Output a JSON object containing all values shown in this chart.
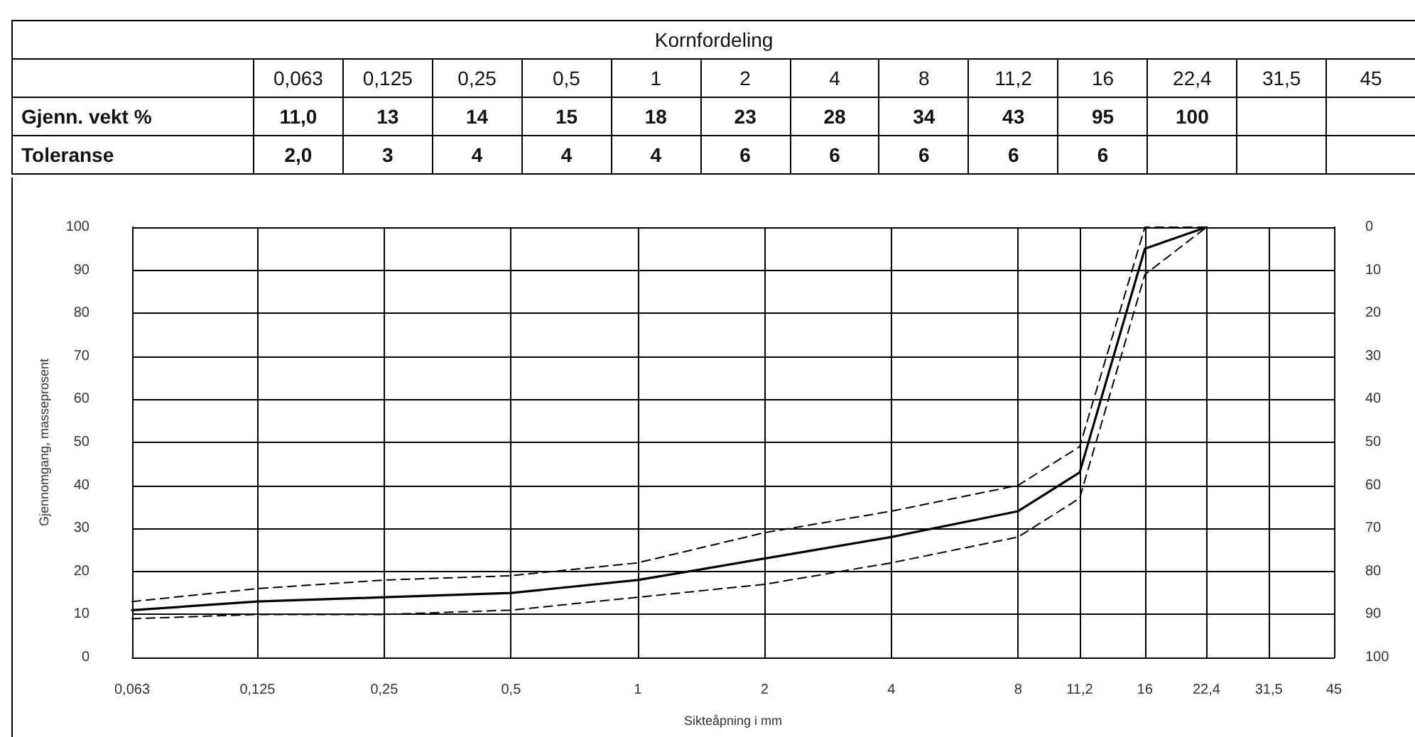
{
  "chart_data": [
    {
      "type": "other",
      "title": "Kornfordeling",
      "categories": [
        "0,063",
        "0,125",
        "0,25",
        "0,5",
        "1",
        "2",
        "4",
        "8",
        "11,2",
        "16",
        "22,4",
        "31,5",
        "45"
      ],
      "y_categories": [
        "Gjenn. vekt %",
        "Toleranse"
      ],
      "cell_labels": [
        [
          "11,0",
          "13",
          "14",
          "15",
          "18",
          "23",
          "28",
          "34",
          "43",
          "95",
          "100",
          null,
          null
        ],
        [
          "2,0",
          "3",
          "4",
          "4",
          "4",
          "6",
          "6",
          "6",
          "6",
          "6",
          null,
          null,
          null
        ]
      ]
    },
    {
      "type": "line",
      "xlabel": "Sikteåpning i mm",
      "ylabel": "Gjennomgang, masseprosent",
      "x": [
        0.063,
        0.125,
        0.25,
        0.5,
        1,
        2,
        4,
        8,
        11.2,
        16,
        22.4
      ],
      "series": [
        {
          "color": "#000000",
          "line_style": "solid",
          "values": [
            11.0,
            13,
            14,
            15,
            18,
            23,
            28,
            34,
            43,
            95,
            100
          ]
        },
        {
          "color": "#000000",
          "line_style": "dashed",
          "values": [
            13,
            16,
            18,
            19,
            22,
            29,
            34,
            40,
            49,
            100,
            100
          ]
        },
        {
          "color": "#000000",
          "line_style": "dashed",
          "values": [
            9,
            10,
            10,
            11,
            14,
            17,
            22,
            28,
            37,
            89,
            100
          ]
        }
      ],
      "log": "x",
      "marker": "none",
      "grid": true,
      "xlim": [
        0.063,
        45
      ],
      "xticks": [
        {
          "value": 0.063,
          "label": "0,063"
        },
        {
          "value": 0.125,
          "label": "0,125"
        },
        {
          "value": 0.25,
          "label": "0,25"
        },
        {
          "value": 0.5,
          "label": "0,5"
        },
        1,
        2,
        4,
        8,
        {
          "value": 11.2,
          "label": "11,2"
        },
        16,
        {
          "value": 22.4,
          "label": "22,4"
        },
        {
          "value": 31.5,
          "label": "31,5"
        },
        45
      ],
      "ylim": [
        0,
        100
      ],
      "yticks": [
        0,
        10,
        20,
        30,
        40,
        50,
        60,
        70,
        80,
        90,
        100
      ],
      "y2lim": [
        100,
        0
      ],
      "y2ticks": [
        0,
        10,
        20,
        30,
        40,
        50,
        60,
        70,
        80,
        90,
        100
      ]
    }
  ]
}
